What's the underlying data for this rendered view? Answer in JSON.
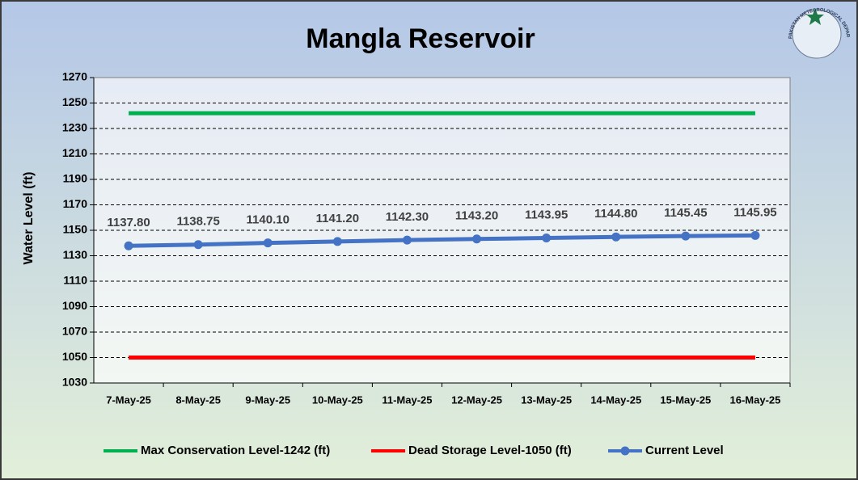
{
  "chart_data": {
    "type": "line",
    "title": "Mangla Reservoir",
    "y_label": "Water Level (ft)",
    "categories": [
      "7-May-25",
      "8-May-25",
      "9-May-25",
      "10-May-25",
      "11-May-25",
      "12-May-25",
      "13-May-25",
      "14-May-25",
      "15-May-25",
      "16-May-25"
    ],
    "series": [
      {
        "name": "Max Conservation Level-1242 (ft)",
        "color": "#00b050",
        "values": [
          1242,
          1242,
          1242,
          1242,
          1242,
          1242,
          1242,
          1242,
          1242,
          1242
        ]
      },
      {
        "name": "Dead Storage Level-1050 (ft)",
        "color": "#ff0000",
        "values": [
          1050,
          1050,
          1050,
          1050,
          1050,
          1050,
          1050,
          1050,
          1050,
          1050
        ]
      },
      {
        "name": "Current Level",
        "color": "#4472c4",
        "markers": true,
        "values": [
          1137.8,
          1138.75,
          1140.1,
          1141.2,
          1142.3,
          1143.2,
          1143.95,
          1144.8,
          1145.45,
          1145.95
        ],
        "value_labels": [
          "1137.80",
          "1138.75",
          "1140.10",
          "1141.20",
          "1142.30",
          "1143.20",
          "1143.95",
          "1144.80",
          "1145.45",
          "1145.95"
        ]
      }
    ],
    "ylim": [
      1030,
      1270
    ],
    "yticks": [
      1030,
      1050,
      1070,
      1090,
      1110,
      1130,
      1150,
      1170,
      1190,
      1210,
      1230,
      1250,
      1270
    ],
    "grid": true,
    "legend": "bottom"
  },
  "logo": {
    "text": "PAKISTAN METEOROLOGICAL DEPARTMENT"
  }
}
